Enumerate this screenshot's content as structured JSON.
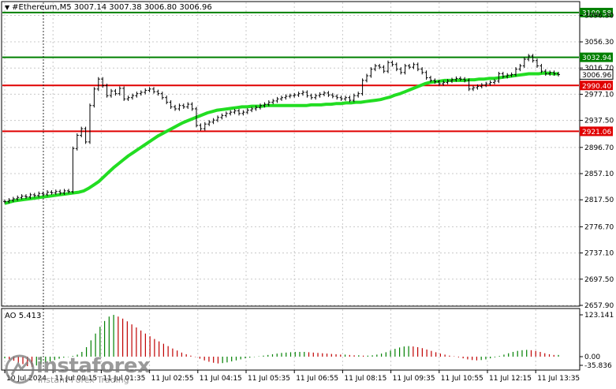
{
  "header": {
    "symbol": "#Ethereum,M5",
    "ohlc": "3007.14 3007.38 3006.80 3006.96"
  },
  "chart_data": {
    "type": "candlestick",
    "price_axis": {
      "ticks": [
        "3096.30",
        "3056.30",
        "3016.70",
        "2977.10",
        "2937.50",
        "2896.70",
        "2857.10",
        "2817.50",
        "2776.70",
        "2737.10",
        "2697.50",
        "2657.90"
      ],
      "ylim": [
        2657.9,
        3116.0
      ]
    },
    "time_axis": {
      "ticks": [
        "10 Jul 2024",
        "11 Jul 00:15",
        "11 Jul 01:35",
        "11 Jul 02:55",
        "11 Jul 04:15",
        "11 Jul 05:35",
        "11 Jul 06:55",
        "11 Jul 08:15",
        "11 Jul 09:35",
        "11 Jul 10:55",
        "11 Jul 12:15",
        "11 Jul 13:35"
      ]
    },
    "levels": [
      {
        "label": "3100.58",
        "value": 3100.58,
        "color": "#008000"
      },
      {
        "label": "3032.94",
        "value": 3032.94,
        "color": "#008000"
      },
      {
        "label": "2990.40",
        "value": 2990.4,
        "color": "#e00000"
      },
      {
        "label": "2921.06",
        "value": 2921.06,
        "color": "#e00000"
      }
    ],
    "current_price": {
      "label": "3006.96",
      "value": 3006.96
    },
    "close_series": [
      2815,
      2817,
      2819,
      2821,
      2823,
      2822,
      2825,
      2824,
      2827,
      2826,
      2829,
      2828,
      2830,
      2828,
      2831,
      2830,
      2895,
      2915,
      2925,
      2905,
      2960,
      2985,
      3000,
      2990,
      2975,
      2982,
      2978,
      2986,
      2970,
      2972,
      2975,
      2978,
      2980,
      2983,
      2985,
      2981,
      2978,
      2972,
      2965,
      2958,
      2955,
      2960,
      2958,
      2962,
      2955,
      2930,
      2925,
      2932,
      2935,
      2938,
      2942,
      2945,
      2948,
      2950,
      2952,
      2948,
      2950,
      2953,
      2955,
      2957,
      2960,
      2962,
      2965,
      2967,
      2970,
      2972,
      2974,
      2975,
      2976,
      2978,
      2980,
      2975,
      2972,
      2975,
      2977,
      2979,
      2976,
      2974,
      2972,
      2970,
      2972,
      2968,
      2975,
      2978,
      2998,
      3005,
      3015,
      3020,
      3018,
      3012,
      3025,
      3022,
      3015,
      3010,
      3020,
      3018,
      3022,
      3015,
      3010,
      3002,
      2998,
      2996,
      2993,
      2995,
      2997,
      2999,
      3001,
      3000,
      2998,
      2985,
      2987,
      2989,
      2991,
      2993,
      2995,
      2997,
      3008,
      3004,
      3006,
      3007,
      3015,
      3020,
      3030,
      3035,
      3028,
      3020,
      3012,
      3008,
      3010,
      3008,
      3007
    ],
    "ma_series": [
      2812,
      2814,
      2816,
      2817,
      2818,
      2819,
      2820,
      2821,
      2822,
      2823,
      2824,
      2825,
      2826,
      2827,
      2828,
      2829,
      2831,
      2835,
      2840,
      2845,
      2852,
      2859,
      2866,
      2872,
      2878,
      2884,
      2889,
      2894,
      2899,
      2904,
      2909,
      2914,
      2918,
      2922,
      2926,
      2930,
      2934,
      2937,
      2940,
      2943,
      2946,
      2949,
      2951,
      2953,
      2954,
      2955,
      2956,
      2957,
      2958,
      2958,
      2959,
      2959,
      2959,
      2960,
      2960,
      2960,
      2960,
      2960,
      2960,
      2960,
      2960,
      2960,
      2961,
      2961,
      2961,
      2962,
      2962,
      2963,
      2963,
      2964,
      2964,
      2965,
      2965,
      2966,
      2967,
      2968,
      2969,
      2971,
      2973,
      2976,
      2978,
      2981,
      2984,
      2987,
      2990,
      2993,
      2995,
      2996,
      2997,
      2998,
      2998,
      2998,
      2998,
      2998,
      2999,
      2999,
      3000,
      3000,
      3001,
      3001,
      3002,
      3003,
      3004,
      3005,
      3006,
      3007,
      3008,
      3008,
      3008,
      3009,
      3009,
      3008,
      3008
    ]
  },
  "ao": {
    "label": "AO 5.413",
    "ticks": [
      "123.141",
      "0.00",
      "-35.836"
    ],
    "values": [
      -5,
      -8,
      -12,
      -18,
      -22,
      -28,
      -30,
      -26,
      -22,
      -18,
      -14,
      -10,
      -6,
      -3,
      -1,
      2,
      6,
      14,
      28,
      48,
      68,
      88,
      105,
      118,
      123,
      118,
      112,
      104,
      95,
      86,
      77,
      68,
      60,
      52,
      45,
      38,
      31,
      24,
      18,
      12,
      7,
      3,
      -1,
      -6,
      -11,
      -15,
      -18,
      -20,
      -19,
      -17,
      -14,
      -11,
      -8,
      -5,
      -3,
      -1,
      1,
      3,
      5,
      7,
      9,
      11,
      12,
      13,
      14,
      14,
      14,
      13,
      12,
      11,
      10,
      9,
      8,
      7,
      6,
      6,
      5,
      4,
      4,
      3,
      3,
      4,
      6,
      9,
      13,
      18,
      23,
      27,
      30,
      31,
      30,
      28,
      25,
      21,
      17,
      13,
      9,
      6,
      3,
      1,
      -2,
      -5,
      -8,
      -10,
      -11,
      -10,
      -8,
      -5,
      -2,
      2,
      6,
      10,
      14,
      17,
      19,
      20,
      19,
      17,
      14,
      10,
      7,
      5,
      5
    ]
  },
  "watermark": {
    "brand": "instaforex",
    "tagline": "Instant Forex Trading"
  }
}
